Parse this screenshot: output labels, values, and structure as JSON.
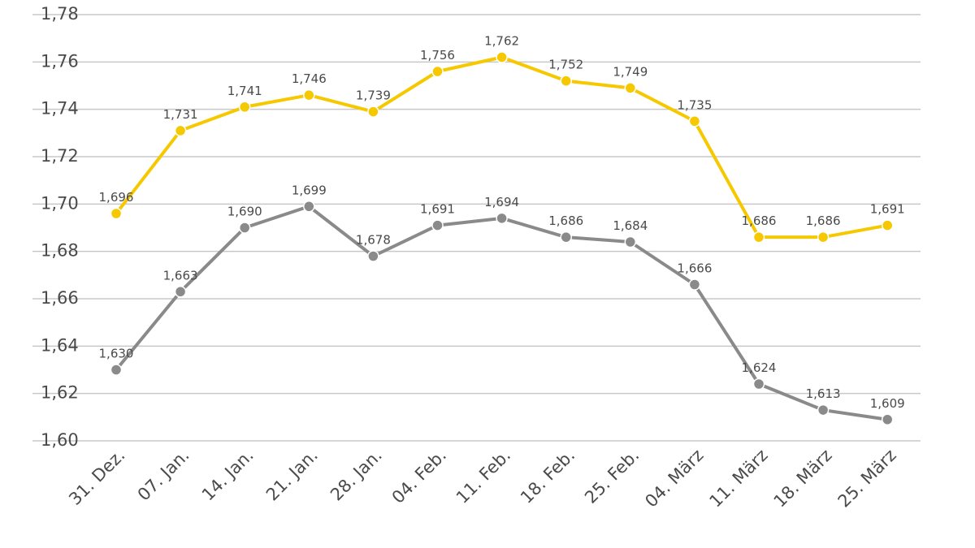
{
  "chart_data": {
    "type": "line",
    "title": "",
    "xlabel": "",
    "ylabel": "",
    "ylim": [
      1.6,
      1.78
    ],
    "ytick_step": 0.02,
    "ytick_labels": [
      "1,60",
      "1,62",
      "1,64",
      "1,66",
      "1,68",
      "1,70",
      "1,72",
      "1,74",
      "1,76",
      "1,78"
    ],
    "grid": true,
    "categories": [
      "31. Dez.",
      "07. Jan.",
      "14. Jan.",
      "21. Jan.",
      "28. Jan.",
      "04. Feb.",
      "11. Feb.",
      "18. Feb.",
      "25. Feb.",
      "04. März",
      "11. März",
      "18. März",
      "25. März"
    ],
    "series": [
      {
        "name": "yellow-series",
        "color": "#f5c800",
        "values": [
          1.696,
          1.731,
          1.741,
          1.746,
          1.739,
          1.756,
          1.762,
          1.752,
          1.749,
          1.735,
          1.686,
          1.686,
          1.691
        ],
        "labels": [
          "1,696",
          "1,731",
          "1,741",
          "1,746",
          "1,739",
          "1,756",
          "1,762",
          "1,752",
          "1,749",
          "1,735",
          "1,686",
          "1,686",
          "1,691"
        ]
      },
      {
        "name": "gray-series",
        "color": "#8a8a8a",
        "values": [
          1.63,
          1.663,
          1.69,
          1.699,
          1.678,
          1.691,
          1.694,
          1.686,
          1.684,
          1.666,
          1.624,
          1.613,
          1.609
        ],
        "labels": [
          "1,630",
          "1,663",
          "1,690",
          "1,699",
          "1,678",
          "1,691",
          "1,694",
          "1,686",
          "1,684",
          "1,666",
          "1,624",
          "1,613",
          "1,609"
        ]
      }
    ]
  }
}
